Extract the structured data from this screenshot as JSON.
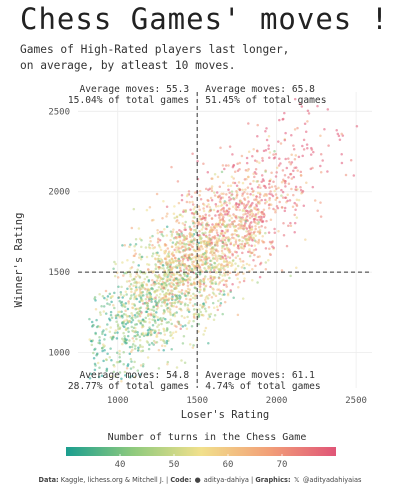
{
  "header": {
    "title": "Chess Games' moves !",
    "subtitle_line1": "Games of High-Rated players last longer,",
    "subtitle_line2": "on average, by atleast 10 moves."
  },
  "chart_data": {
    "type": "scatter",
    "xlabel": "Loser's Rating",
    "ylabel": "Winner's Rating",
    "xlim": [
      750,
      2600
    ],
    "ylim": [
      780,
      2620
    ],
    "xticks": [
      1000,
      1500,
      2000,
      2500
    ],
    "yticks": [
      1000,
      1500,
      2000,
      2500
    ],
    "grid": true,
    "reference_lines": {
      "x": 1500,
      "y": 1500,
      "style": "dashed"
    },
    "quadrants": [
      {
        "position": "top-left",
        "avg_label": "Average moves: 55.3",
        "share_label": "15.04% of total games"
      },
      {
        "position": "top-right",
        "avg_label": "Average moves: 65.8",
        "share_label": "51.45% of total games"
      },
      {
        "position": "bottom-left",
        "avg_label": "Average moves: 54.8",
        "share_label": "28.77% of total games"
      },
      {
        "position": "bottom-right",
        "avg_label": "Average moves: 61.1",
        "share_label": "4.74% of total games"
      }
    ],
    "color_scale": {
      "title": "Number of turns in the Chess Game",
      "ticks": [
        40,
        50,
        60,
        70
      ],
      "range": [
        30,
        80
      ],
      "colors": [
        "#1b9e8f",
        "#8fca7d",
        "#f1e08c",
        "#f2a078",
        "#e05577"
      ]
    },
    "points_note": "dense cloud of ~10,000 games concentrated along the diagonal from (1000,1000) to (2500,2500)"
  },
  "footer": {
    "data_label": "Data:",
    "data_text": "Kaggle, lichess.org & Mitchell J.",
    "code_label": "Code:",
    "code_text": "aditya-dahiya",
    "graphics_label": "Graphics:",
    "graphics_text": "@adityadahiyaias",
    "github_icon": "github-icon",
    "x_icon": "x-icon"
  }
}
